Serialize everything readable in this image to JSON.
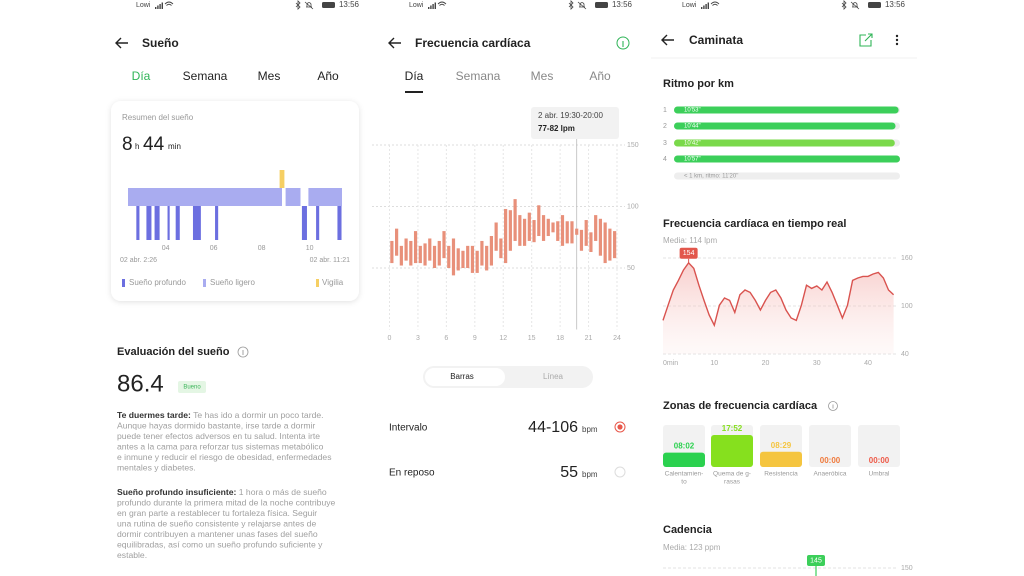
{
  "screens": [
    {
      "status": {
        "carrier": "Lowi",
        "time": "13:56"
      },
      "header": {
        "title": "Sueño"
      },
      "tabs": [
        "Día",
        "Semana",
        "Mes",
        "Año"
      ],
      "summary": {
        "title": "Resumen del sueño",
        "hours": 8,
        "hours_unit": "h",
        "minutes": 44,
        "minutes_unit": "min",
        "chart": {
          "type": "timeline",
          "xlim": [
            2.433,
            11.35
          ],
          "xticks": [
            {
              "value": 4,
              "label": "04"
            },
            {
              "value": 6,
              "label": "06"
            },
            {
              "value": 8,
              "label": "08"
            },
            {
              "value": 10,
              "label": "10"
            }
          ],
          "start_label": "02 abr. 2:26",
          "end_label": "02 abr. 11:21",
          "series": [
            {
              "name": "Sueño profundo",
              "color": "#6c6fe0",
              "segments": [
                [
                  2.78,
                  2.91
                ],
                [
                  3.2,
                  3.41
                ],
                [
                  3.54,
                  3.75
                ],
                [
                  4.08,
                  4.17
                ],
                [
                  4.42,
                  4.59
                ],
                [
                  5.14,
                  5.47
                ],
                [
                  6.06,
                  6.19
                ],
                [
                  9.68,
                  9.89
                ],
                [
                  10.27,
                  10.4
                ],
                [
                  11.16,
                  11.33
                ]
              ]
            },
            {
              "name": "Sueño ligero",
              "color": "#a9acf0",
              "segments": [
                [
                  2.433,
                  8.85
                ],
                [
                  9.0,
                  9.62
                ],
                [
                  9.95,
                  11.35
                ]
              ]
            },
            {
              "name": "Vigilia",
              "color": "#f6cf63",
              "segments": [
                [
                  8.75,
                  8.95
                ]
              ]
            }
          ]
        }
      },
      "evaluation": {
        "title": "Evaluación del sueño",
        "score": "86.4",
        "badge": "Bueno",
        "notes": [
          {
            "heading": "Te duermes tarde:",
            "lines": [
              " Te has ido a dormir un poco tarde.",
              "Aunque hayas dormido bastante, irse tarde a dormir",
              "puede tener efectos adversos en tu salud. Intenta irte",
              "antes a la cama para reforzar tus sistemas metabólico",
              "e inmune y reducir el riesgo de obesidad, enfermedades",
              "mentales y diabetes."
            ]
          },
          {
            "heading": "Sueño profundo insuficiente:",
            "lines": [
              " 1 hora o más de sueño",
              "profundo durante la primera mitad de la noche contribuye",
              "en gran parte a restablecer tu fortaleza física. Seguir",
              "una rutina de sueño consistente y relajarse antes de",
              "dormir contribuyen a mantener unas fases del sueño",
              "equilibradas, así como un sueño profundo suficiente y",
              "estable."
            ]
          }
        ]
      }
    },
    {
      "status": {
        "carrier": "Lowi",
        "time": "13:56"
      },
      "header": {
        "title": "Frecuencia cardíaca"
      },
      "tabs": [
        "Día",
        "Semana",
        "Mes",
        "Año"
      ],
      "chart": {
        "type": "range-bar",
        "color": "#e8907a",
        "x": [
          0,
          0.5,
          1,
          1.5,
          2,
          2.5,
          3,
          3.5,
          4,
          4.5,
          5,
          5.5,
          6,
          6.5,
          7,
          7.5,
          8,
          8.5,
          9,
          9.5,
          10,
          10.5,
          11,
          11.5,
          12,
          12.5,
          13,
          13.5,
          14,
          14.5,
          15,
          15.5,
          16,
          16.5,
          17,
          17.5,
          18,
          18.5,
          19,
          19.5,
          20,
          20.5,
          21,
          21.5,
          22,
          22.5,
          23,
          23.5
        ],
        "high": [
          72,
          82,
          68,
          74,
          72,
          80,
          68,
          70,
          74,
          68,
          72,
          80,
          68,
          74,
          66,
          64,
          68,
          68,
          64,
          72,
          68,
          76,
          87,
          74,
          98,
          97,
          106,
          93,
          90,
          95,
          89,
          101,
          93,
          90,
          87,
          88,
          93,
          88,
          88,
          82,
          81,
          89,
          79,
          93,
          90,
          87,
          82,
          80
        ],
        "low": [
          54,
          60,
          52,
          56,
          52,
          54,
          54,
          52,
          56,
          50,
          52,
          58,
          50,
          44,
          48,
          50,
          50,
          46,
          46,
          52,
          48,
          52,
          64,
          58,
          54,
          64,
          72,
          68,
          68,
          72,
          71,
          76,
          72,
          76,
          79,
          72,
          68,
          70,
          70,
          77,
          64,
          68,
          63,
          72,
          60,
          54,
          56,
          58
        ],
        "xlim": [
          0,
          24
        ],
        "ylim": [
          0,
          150
        ],
        "xticks": [
          0,
          3,
          6,
          9,
          12,
          15,
          18,
          21,
          24
        ],
        "yticks": [
          50,
          100,
          150
        ],
        "tooltip": {
          "title": "2 abr. 19:30-20:00",
          "value": "77-82 lpm",
          "x": 19.5
        }
      },
      "toggle": [
        "Barras",
        "Línea"
      ],
      "stats": [
        {
          "label": "Intervalo",
          "value": "44-106",
          "unit": "bpm"
        },
        {
          "label": "En reposo",
          "value": 55,
          "unit": "bpm"
        }
      ]
    },
    {
      "status": {
        "carrier": "Lowi",
        "time": "13:56"
      },
      "header": {
        "title": "Caminata"
      },
      "pace": {
        "title": "Ritmo por km",
        "type": "bar",
        "categories": [
          "1",
          "2",
          "3",
          "4"
        ],
        "values": [
          653,
          644,
          642,
          657
        ],
        "value_labels": [
          "10'53\"",
          "10'44\"",
          "10'42\"",
          "10'57\""
        ],
        "colors": [
          "#3ccf5a",
          "#3ccf5a",
          "#7ad94a",
          "#3ccf5a"
        ],
        "note": "< 1 km, ritmo: 11'20\""
      },
      "realtime": {
        "title": "Frecuencia cardíaca en tiempo real",
        "subtitle": "Media: 114 lpm",
        "type": "line",
        "x": [
          0,
          1,
          2,
          3,
          4,
          5,
          6,
          7,
          8,
          9,
          10,
          11,
          12,
          13,
          14,
          15,
          16,
          17,
          18,
          19,
          20,
          21,
          22,
          23,
          24,
          25,
          26,
          27,
          28,
          29,
          30,
          31,
          32,
          33,
          34,
          35,
          36,
          37,
          38,
          39,
          40,
          41,
          42,
          43,
          44,
          45
        ],
        "series": [
          {
            "color": "#d9534f",
            "values": [
              82,
              101,
              120,
              132,
              145,
              154,
              147,
              126,
              107,
              89,
              76,
              101,
              110,
              107,
              92,
              114,
              120,
              117,
              107,
              95,
              107,
              117,
              120,
              110,
              95,
              85,
              82,
              101,
              126,
              122,
              125,
              120,
              130,
              117,
              101,
              85,
              101,
              132,
              135,
              137,
              137,
              140,
              142,
              135,
              120,
              114
            ]
          }
        ],
        "xlim": [
          0,
          46
        ],
        "ylim": [
          40,
          160
        ],
        "xticks": [
          {
            "value": 0,
            "label": "0min"
          },
          10,
          20,
          30,
          40
        ],
        "yticks": [
          40,
          100,
          160
        ]
      },
      "zones": {
        "title": "Zonas de frecuencia cardíaca",
        "items": [
          {
            "time": "08:02",
            "label": [
              "Calentamien-",
              "to"
            ],
            "color": "#2bd14f"
          },
          {
            "time": "17:52",
            "label": [
              "Quema de g-",
              "rasas"
            ],
            "color": "#86e01e"
          },
          {
            "time": "08:29",
            "label": [
              "Resistencia"
            ],
            "color": "#f5c53f"
          },
          {
            "time": "00:00",
            "label": [
              "Anaeróbica"
            ],
            "color": "#f07a3c"
          },
          {
            "time": "00:00",
            "label": [
              "Umbral"
            ],
            "color": "#ee5a48"
          }
        ]
      },
      "cadence": {
        "title": "Cadencia",
        "subtitle": "Media: 123 ppm",
        "peak": 145,
        "yticks": [
          150
        ],
        "color": "#3ccf5a"
      }
    }
  ]
}
